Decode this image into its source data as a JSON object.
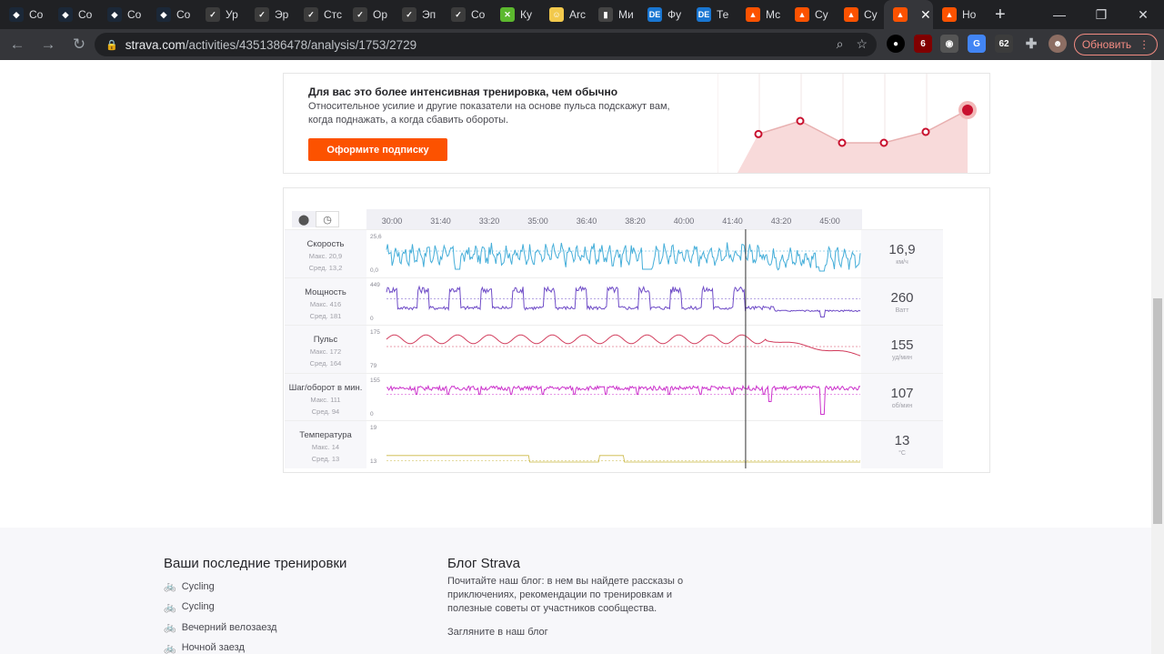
{
  "browser": {
    "tabs": [
      {
        "label": "Co",
        "icon": "steam-icon",
        "color": "#1b2838",
        "glyph": "◆"
      },
      {
        "label": "Co",
        "icon": "steam-icon",
        "color": "#1b2838",
        "glyph": "◆"
      },
      {
        "label": "Co",
        "icon": "steam-icon",
        "color": "#1b2838",
        "glyph": "◆"
      },
      {
        "label": "Co",
        "icon": "steam-icon",
        "color": "#1b2838",
        "glyph": "◆"
      },
      {
        "label": "Ур",
        "icon": "game-icon",
        "color": "#3c3c3c",
        "glyph": "✓"
      },
      {
        "label": "Эр",
        "icon": "game-icon",
        "color": "#3c3c3c",
        "glyph": "✓"
      },
      {
        "label": "Стс",
        "icon": "game-icon",
        "color": "#3c3c3c",
        "glyph": "✓"
      },
      {
        "label": "Ор",
        "icon": "game-icon",
        "color": "#3c3c3c",
        "glyph": "✓"
      },
      {
        "label": "Эп",
        "icon": "game-icon",
        "color": "#3c3c3c",
        "glyph": "✓"
      },
      {
        "label": "Co",
        "icon": "game-icon",
        "color": "#3c3c3c",
        "glyph": "✓"
      },
      {
        "label": "Ку",
        "icon": "puzzle-green-icon",
        "color": "#5cb82e",
        "glyph": "✕"
      },
      {
        "label": "Arc",
        "icon": "smiley-icon",
        "color": "#f2c94c",
        "glyph": "☺"
      },
      {
        "label": "Ми",
        "icon": "figure-icon",
        "color": "#444444",
        "glyph": "▮"
      },
      {
        "label": "Фу",
        "icon": "de-icon",
        "color": "#1976d2",
        "glyph": "DE"
      },
      {
        "label": "Те",
        "icon": "de-icon",
        "color": "#1976d2",
        "glyph": "DE"
      },
      {
        "label": "Мс",
        "icon": "strava-icon",
        "color": "#fc5200",
        "glyph": "▲"
      },
      {
        "label": "Су",
        "icon": "strava-icon",
        "color": "#fc5200",
        "glyph": "▲"
      },
      {
        "label": "Су",
        "icon": "strava-icon",
        "color": "#fc5200",
        "glyph": "▲"
      },
      {
        "label": "",
        "icon": "strava-icon",
        "color": "#fc5200",
        "glyph": "▲",
        "active": true
      },
      {
        "label": "Но",
        "icon": "strava-icon",
        "color": "#fc5200",
        "glyph": "▲"
      }
    ],
    "url_host": "strava.com",
    "url_path": "/activities/4351386478/analysis/1753/2729",
    "update_label": "Обновить",
    "ext_badges": {
      "ublock": "6",
      "translate": "62"
    }
  },
  "promo": {
    "title": "Для вас это более интенсивная тренировка, чем обычно",
    "text": "Относительное усилие и другие показатели на основе пульса подскажут вам, когда поднажать, а когда сбавить обороты.",
    "cta": "Оформите подписку",
    "points": [
      0.42,
      0.6,
      0.3,
      0.3,
      0.45,
      0.75
    ]
  },
  "analysis": {
    "time_ticks": [
      "30:00",
      "31:40",
      "33:20",
      "35:00",
      "36:40",
      "38:20",
      "40:00",
      "41:40",
      "43:20",
      "45:00"
    ],
    "cursor_fraction": 0.765,
    "rows": [
      {
        "key": "speed",
        "name": "Скорость",
        "max": "Макс. 20,9",
        "avg": "Сред. 13,2",
        "value": "16,9",
        "unit": "км/ч",
        "ytop": "25,6",
        "ybot": "0,0",
        "color": "#45aed9"
      },
      {
        "key": "power",
        "name": "Мощность",
        "max": "Макс. 416",
        "avg": "Сред. 181",
        "value": "260",
        "unit": "Ватт",
        "ytop": "449",
        "ybot": "0",
        "color": "#6f4cc7"
      },
      {
        "key": "hr",
        "name": "Пульс",
        "max": "Макс. 172",
        "avg": "Сред. 164",
        "value": "155",
        "unit": "уд/мин",
        "ytop": "175",
        "ybot": "79",
        "color": "#d13a5a"
      },
      {
        "key": "cadence",
        "name": "Шаг/оборот в мин.",
        "max": "Макс. 111",
        "avg": "Сред. 94",
        "value": "107",
        "unit": "об/мин",
        "ytop": "155",
        "ybot": "0",
        "color": "#cc33cc"
      },
      {
        "key": "temp",
        "name": "Температура",
        "max": "Макс. 14",
        "avg": "Сред. 13",
        "value": "13",
        "unit": "°C",
        "ytop": "19",
        "ybot": "13",
        "color": "#c9b640"
      }
    ]
  },
  "footer": {
    "recent_title": "Ваши последние тренировки",
    "recent": [
      "Cycling",
      "Cycling",
      "Вечерний велозаезд",
      "Ночной заезд"
    ],
    "blog_title": "Блог Strava",
    "blog_text": "Почитайте наш блог: в нем вы найдете рассказы о приключениях, рекомендации по тренировкам и полезные советы от участников сообщества.",
    "blog_link": "Загляните в наш блог"
  }
}
